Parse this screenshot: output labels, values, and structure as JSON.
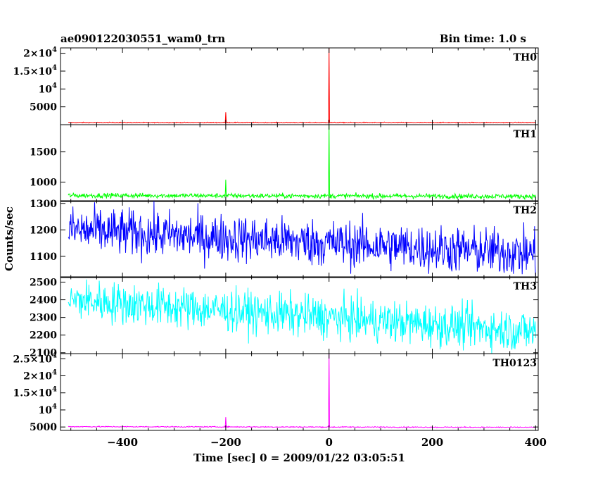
{
  "header": {
    "title": "ae090122030551_wam0_trn",
    "bin_time": "Bin time: 1.0 s"
  },
  "chart_data": {
    "type": "line",
    "title": "ae090122030551_wam0_trn",
    "subtitle": "Bin time: 1.0 s",
    "xlabel": "Time [sec] 0 = 2009/01/22 03:05:51",
    "ylabel": "Counts/sec",
    "xlim": [
      -520,
      405
    ],
    "x_ticks": [
      -400,
      -200,
      0,
      200,
      400
    ],
    "x_tick_labels": [
      "−400",
      "−200",
      "0",
      "200",
      "400"
    ],
    "panels": [
      {
        "name": "TH0",
        "color": "#ff0000",
        "ylim": [
          0,
          21500
        ],
        "y_ticks": [
          {
            "v": 5000,
            "label": "5000"
          },
          {
            "v": 10000,
            "label": "10^4"
          },
          {
            "v": 15000,
            "label": "1.5×10^4"
          },
          {
            "v": 20000,
            "label": "2×10^4"
          }
        ],
        "baseline": 600,
        "noise": 60,
        "trend": 0,
        "spikes": [
          {
            "x": -200,
            "y": 3500
          },
          {
            "x": 0,
            "y": 21500
          }
        ]
      },
      {
        "name": "TH1",
        "color": "#00ff00",
        "ylim": [
          680,
          1950
        ],
        "y_ticks": [
          {
            "v": 1000,
            "label": "1000"
          },
          {
            "v": 1500,
            "label": "1500"
          }
        ],
        "baseline": 780,
        "noise": 20,
        "trend": -15,
        "spikes": [
          {
            "x": -200,
            "y": 1040
          },
          {
            "x": 0,
            "y": 1950
          }
        ]
      },
      {
        "name": "TH2",
        "color": "#0000ff",
        "ylim": [
          1020,
          1310
        ],
        "y_ticks": [
          {
            "v": 1100,
            "label": "1100"
          },
          {
            "v": 1200,
            "label": "1200"
          },
          {
            "v": 1300,
            "label": "1300"
          }
        ],
        "baseline": 1200,
        "noise": 45,
        "trend": -90,
        "spikes": []
      },
      {
        "name": "TH3",
        "color": "#00ffff",
        "ylim": [
          2095,
          2530
        ],
        "y_ticks": [
          {
            "v": 2100,
            "label": "2100"
          },
          {
            "v": 2200,
            "label": "2200"
          },
          {
            "v": 2300,
            "label": "2300"
          },
          {
            "v": 2400,
            "label": "2400"
          },
          {
            "v": 2500,
            "label": "2500"
          }
        ],
        "baseline": 2400,
        "noise": 60,
        "trend": -180,
        "spikes": []
      },
      {
        "name": "TH0123",
        "color": "#ff00ff",
        "ylim": [
          4000,
          26500
        ],
        "y_ticks": [
          {
            "v": 5000,
            "label": "5000"
          },
          {
            "v": 10000,
            "label": "10^4"
          },
          {
            "v": 15000,
            "label": "1.5×10^4"
          },
          {
            "v": 20000,
            "label": "2×10^4"
          },
          {
            "v": 25000,
            "label": "2.5×10^4"
          }
        ],
        "baseline": 5100,
        "noise": 80,
        "trend": -200,
        "spikes": [
          {
            "x": -200,
            "y": 7900
          },
          {
            "x": 0,
            "y": 26500
          }
        ]
      }
    ]
  }
}
